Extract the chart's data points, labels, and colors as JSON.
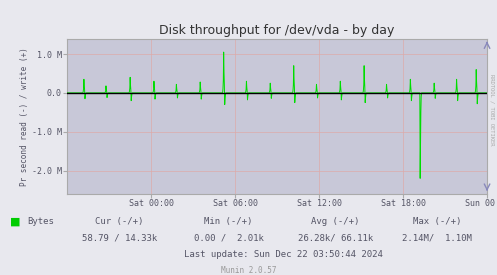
{
  "title": "Disk throughput for /dev/vda - by day",
  "ylabel": "Pr second read (-) / write (+)",
  "bg_color": "#e8e8ee",
  "plot_bg_color": "#c8c8d8",
  "grid_color": "#ddaaaa",
  "line_color": "#00dd00",
  "zero_line_color": "#000000",
  "border_color": "#aaaaaa",
  "title_color": "#333333",
  "text_color": "#555566",
  "xtick_labels": [
    "Sat 00:00",
    "Sat 06:00",
    "Sat 12:00",
    "Sat 18:00",
    "Sun 00:00"
  ],
  "ytick_labels": [
    "1.0 M",
    "0.0",
    "-1.0 M",
    "-2.0 M"
  ],
  "ytick_values": [
    1000000,
    0,
    -1000000,
    -2000000
  ],
  "ylim": [
    -2600000,
    1400000
  ],
  "xlim": [
    0,
    30
  ],
  "xtick_positions": [
    6,
    12,
    18,
    24,
    30
  ],
  "legend_label": "Bytes",
  "legend_color": "#00cc00",
  "cur_text": "Cur (-/+)",
  "cur_val": "58.79 / 14.33k",
  "min_text": "Min (-/+)",
  "min_val": "0.00 /  2.01k",
  "avg_text": "Avg (-/+)",
  "avg_val": "26.28k/ 66.11k",
  "max_text": "Max (-/+)",
  "max_val": "2.14M/  1.10M",
  "last_update": "Last update: Sun Dec 22 03:50:44 2024",
  "munin_version": "Munin 2.0.57",
  "rrdtool_text": "RRDTOOL / TOBI OETIKER"
}
